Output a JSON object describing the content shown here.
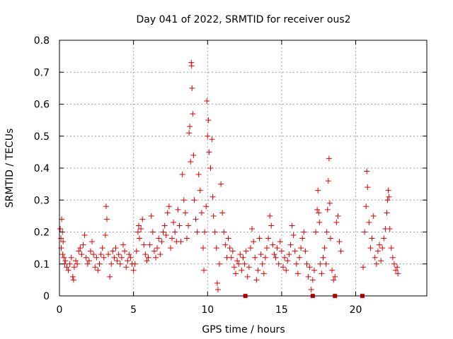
{
  "chart_data": {
    "type": "scatter",
    "title": "Day 041 of 2022, SRMTID for receiver ous2",
    "xlabel": "GPS time / hours",
    "ylabel": "SRMTID / TECUs",
    "xlim": [
      0,
      24.8
    ],
    "ylim": [
      0,
      0.8
    ],
    "x_ticks": [
      0,
      5,
      10,
      15,
      20
    ],
    "y_ticks": [
      0,
      0.1,
      0.2,
      0.3,
      0.4,
      0.5,
      0.6,
      0.7,
      0.8
    ],
    "x_tick_labels": [
      "0",
      "5",
      "10",
      "15",
      "20"
    ],
    "y_tick_labels": [
      "0",
      "0.1",
      "0.2",
      "0.3",
      "0.4",
      "0.5",
      "0.6",
      "0.7",
      "0.8"
    ],
    "grid": true,
    "marker": "+",
    "series_color": "#e00000",
    "series": [
      {
        "name": "SRMTID",
        "points": [
          [
            0.05,
            0.21
          ],
          [
            0.1,
            0.18
          ],
          [
            0.12,
            0.15
          ],
          [
            0.15,
            0.24
          ],
          [
            0.2,
            0.2
          ],
          [
            0.22,
            0.13
          ],
          [
            0.25,
            0.17
          ],
          [
            0.3,
            0.12
          ],
          [
            0.35,
            0.1
          ],
          [
            0.4,
            0.11
          ],
          [
            0.5,
            0.09
          ],
          [
            0.6,
            0.08
          ],
          [
            0.7,
            0.1
          ],
          [
            0.8,
            0.12
          ],
          [
            0.9,
            0.06
          ],
          [
            0.95,
            0.05
          ],
          [
            1.0,
            0.09
          ],
          [
            1.1,
            0.11
          ],
          [
            1.2,
            0.1
          ],
          [
            1.3,
            0.14
          ],
          [
            1.4,
            0.15
          ],
          [
            1.5,
            0.13
          ],
          [
            1.6,
            0.16
          ],
          [
            1.7,
            0.19
          ],
          [
            1.8,
            0.12
          ],
          [
            1.9,
            0.1
          ],
          [
            2.0,
            0.11
          ],
          [
            2.1,
            0.14
          ],
          [
            2.2,
            0.17
          ],
          [
            2.3,
            0.13
          ],
          [
            2.4,
            0.09
          ],
          [
            2.5,
            0.12
          ],
          [
            2.6,
            0.08
          ],
          [
            2.7,
            0.1
          ],
          [
            2.8,
            0.13
          ],
          [
            2.9,
            0.15
          ],
          [
            3.0,
            0.12
          ],
          [
            3.1,
            0.19
          ],
          [
            3.15,
            0.28
          ],
          [
            3.2,
            0.24
          ],
          [
            3.3,
            0.13
          ],
          [
            3.4,
            0.06
          ],
          [
            3.5,
            0.1
          ],
          [
            3.6,
            0.14
          ],
          [
            3.7,
            0.12
          ],
          [
            3.8,
            0.15
          ],
          [
            3.9,
            0.11
          ],
          [
            4.0,
            0.13
          ],
          [
            4.1,
            0.1
          ],
          [
            4.2,
            0.12
          ],
          [
            4.3,
            0.16
          ],
          [
            4.4,
            0.14
          ],
          [
            4.5,
            0.09
          ],
          [
            4.6,
            0.11
          ],
          [
            4.7,
            0.13
          ],
          [
            4.8,
            0.12
          ],
          [
            4.9,
            0.1
          ],
          [
            5.0,
            0.08
          ],
          [
            5.1,
            0.1
          ],
          [
            5.2,
            0.14
          ],
          [
            5.3,
            0.2
          ],
          [
            5.35,
            0.22
          ],
          [
            5.4,
            0.18
          ],
          [
            5.5,
            0.21
          ],
          [
            5.6,
            0.24
          ],
          [
            5.7,
            0.16
          ],
          [
            5.8,
            0.13
          ],
          [
            5.9,
            0.11
          ],
          [
            6.0,
            0.12
          ],
          [
            6.1,
            0.16
          ],
          [
            6.2,
            0.25
          ],
          [
            6.3,
            0.2
          ],
          [
            6.4,
            0.14
          ],
          [
            6.5,
            0.12
          ],
          [
            6.6,
            0.15
          ],
          [
            6.7,
            0.18
          ],
          [
            6.8,
            0.13
          ],
          [
            6.9,
            0.17
          ],
          [
            7.0,
            0.2
          ],
          [
            7.1,
            0.22
          ],
          [
            7.2,
            0.19
          ],
          [
            7.3,
            0.26
          ],
          [
            7.4,
            0.28
          ],
          [
            7.5,
            0.15
          ],
          [
            7.6,
            0.18
          ],
          [
            7.7,
            0.23
          ],
          [
            7.8,
            0.2
          ],
          [
            7.9,
            0.17
          ],
          [
            8.0,
            0.27
          ],
          [
            8.1,
            0.22
          ],
          [
            8.2,
            0.17
          ],
          [
            8.3,
            0.38
          ],
          [
            8.4,
            0.3
          ],
          [
            8.5,
            0.26
          ],
          [
            8.6,
            0.18
          ],
          [
            8.7,
            0.22
          ],
          [
            8.75,
            0.51
          ],
          [
            8.8,
            0.53
          ],
          [
            8.85,
            0.42
          ],
          [
            8.9,
            0.73
          ],
          [
            8.92,
            0.72
          ],
          [
            8.95,
            0.65
          ],
          [
            9.0,
            0.57
          ],
          [
            9.05,
            0.44
          ],
          [
            9.1,
            0.3
          ],
          [
            9.2,
            0.24
          ],
          [
            9.3,
            0.2
          ],
          [
            9.4,
            0.38
          ],
          [
            9.5,
            0.33
          ],
          [
            9.6,
            0.26
          ],
          [
            9.7,
            0.15
          ],
          [
            9.75,
            0.08
          ],
          [
            9.8,
            0.2
          ],
          [
            9.9,
            0.28
          ],
          [
            9.95,
            0.61
          ],
          [
            10.0,
            0.5
          ],
          [
            10.05,
            0.55
          ],
          [
            10.1,
            0.45
          ],
          [
            10.2,
            0.4
          ],
          [
            10.3,
            0.49
          ],
          [
            10.35,
            0.31
          ],
          [
            10.4,
            0.25
          ],
          [
            10.5,
            0.2
          ],
          [
            10.6,
            0.15
          ],
          [
            10.65,
            0.04
          ],
          [
            10.7,
            0.02
          ],
          [
            10.8,
            0.1
          ],
          [
            10.9,
            0.35
          ],
          [
            11.0,
            0.26
          ],
          [
            11.1,
            0.2
          ],
          [
            11.2,
            0.16
          ],
          [
            11.3,
            0.12
          ],
          [
            11.4,
            0.18
          ],
          [
            11.5,
            0.15
          ],
          [
            11.6,
            0.12
          ],
          [
            11.7,
            0.14
          ],
          [
            11.8,
            0.09
          ],
          [
            11.9,
            0.07
          ],
          [
            12.0,
            0.11
          ],
          [
            12.1,
            0.1
          ],
          [
            12.2,
            0.13
          ],
          [
            12.3,
            0.08
          ],
          [
            12.4,
            0.12
          ],
          [
            12.5,
            0.1
          ],
          [
            12.6,
            0.14
          ],
          [
            12.7,
            0.06
          ],
          [
            12.8,
            0.09
          ],
          [
            12.9,
            0.15
          ],
          [
            13.0,
            0.21
          ],
          [
            13.1,
            0.17
          ],
          [
            13.2,
            0.12
          ],
          [
            13.3,
            0.05
          ],
          [
            13.4,
            0.08
          ],
          [
            13.5,
            0.18
          ],
          [
            13.6,
            0.13
          ],
          [
            13.7,
            0.1
          ],
          [
            13.8,
            0.07
          ],
          [
            13.9,
            0.12
          ],
          [
            14.0,
            0.15
          ],
          [
            14.1,
            0.18
          ],
          [
            14.2,
            0.25
          ],
          [
            14.3,
            0.22
          ],
          [
            14.4,
            0.16
          ],
          [
            14.5,
            0.13
          ],
          [
            14.6,
            0.12
          ],
          [
            14.7,
            0.15
          ],
          [
            14.8,
            0.1
          ],
          [
            14.9,
            0.17
          ],
          [
            15.0,
            0.14
          ],
          [
            15.1,
            0.09
          ],
          [
            15.2,
            0.12
          ],
          [
            15.3,
            0.08
          ],
          [
            15.4,
            0.11
          ],
          [
            15.5,
            0.13
          ],
          [
            15.6,
            0.16
          ],
          [
            15.7,
            0.22
          ],
          [
            15.8,
            0.19
          ],
          [
            15.9,
            0.14
          ],
          [
            16.0,
            0.1
          ],
          [
            16.1,
            0.07
          ],
          [
            16.2,
            0.12
          ],
          [
            16.3,
            0.15
          ],
          [
            16.4,
            0.18
          ],
          [
            16.5,
            0.2
          ],
          [
            16.6,
            0.14
          ],
          [
            16.7,
            0.1
          ],
          [
            16.8,
            0.06
          ],
          [
            16.9,
            0.09
          ],
          [
            17.0,
            0.02
          ],
          [
            17.1,
            0.05
          ],
          [
            17.2,
            0.08
          ],
          [
            17.3,
            0.2
          ],
          [
            17.4,
            0.27
          ],
          [
            17.45,
            0.33
          ],
          [
            17.5,
            0.26
          ],
          [
            17.55,
            0.23
          ],
          [
            17.6,
            0.1
          ],
          [
            17.7,
            0.07
          ],
          [
            17.8,
            0.12
          ],
          [
            17.9,
            0.15
          ],
          [
            18.0,
            0.1
          ],
          [
            18.05,
            0.2
          ],
          [
            18.1,
            0.27
          ],
          [
            18.15,
            0.36
          ],
          [
            18.2,
            0.43
          ],
          [
            18.25,
            0.29
          ],
          [
            18.3,
            0.18
          ],
          [
            18.4,
            0.08
          ],
          [
            18.5,
            0.05
          ],
          [
            18.6,
            0.06
          ],
          [
            18.7,
            0.23
          ],
          [
            18.8,
            0.25
          ],
          [
            18.9,
            0.17
          ],
          [
            19.0,
            0.14
          ],
          [
            20.5,
            0.09
          ],
          [
            20.6,
            0.2
          ],
          [
            20.7,
            0.28
          ],
          [
            20.75,
            0.39
          ],
          [
            20.8,
            0.34
          ],
          [
            20.9,
            0.23
          ],
          [
            21.0,
            0.15
          ],
          [
            21.1,
            0.18
          ],
          [
            21.2,
            0.25
          ],
          [
            21.3,
            0.12
          ],
          [
            21.4,
            0.1
          ],
          [
            21.5,
            0.14
          ],
          [
            21.6,
            0.16
          ],
          [
            21.7,
            0.11
          ],
          [
            21.8,
            0.15
          ],
          [
            21.9,
            0.18
          ],
          [
            22.0,
            0.21
          ],
          [
            22.1,
            0.26
          ],
          [
            22.15,
            0.3
          ],
          [
            22.2,
            0.33
          ],
          [
            22.25,
            0.31
          ],
          [
            22.3,
            0.21
          ],
          [
            22.4,
            0.15
          ],
          [
            22.5,
            0.12
          ],
          [
            22.6,
            0.1
          ],
          [
            22.7,
            0.08
          ],
          [
            22.8,
            0.09
          ],
          [
            22.85,
            0.07
          ]
        ]
      }
    ],
    "gap_markers_x": [
      12.55,
      17.1,
      18.6,
      20.45
    ]
  }
}
